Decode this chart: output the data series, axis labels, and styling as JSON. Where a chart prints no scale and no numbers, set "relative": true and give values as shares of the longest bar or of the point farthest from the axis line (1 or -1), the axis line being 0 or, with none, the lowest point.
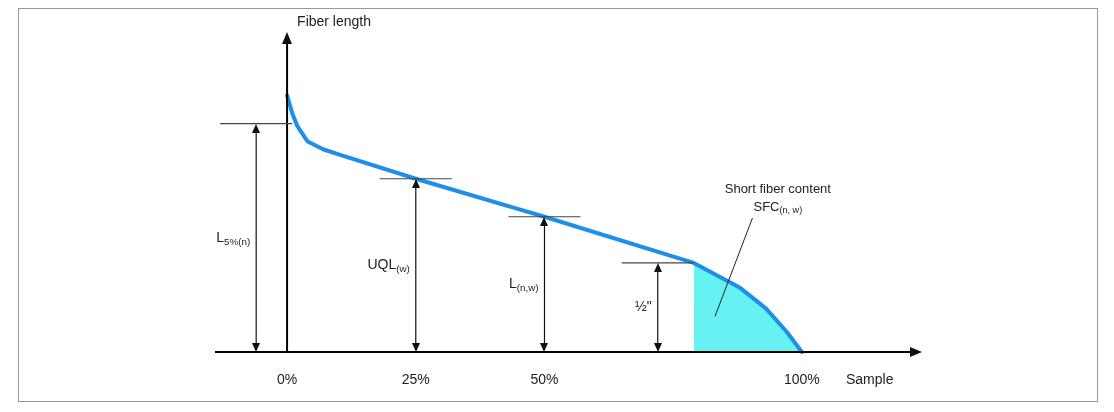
{
  "chart_data": {
    "type": "line",
    "relative": true,
    "xlabel": "Sample",
    "ylabel": "Fiber length",
    "x": [
      0,
      1,
      2,
      4,
      7,
      10,
      25,
      50,
      79,
      88,
      93,
      97,
      100
    ],
    "series": [
      {
        "color": "#1e8fe8",
        "values": [
          1,
          0.93,
          0.88,
          0.82,
          0.79,
          0.77,
          0.675,
          0.527,
          0.347,
          0.25,
          0.17,
          0.08,
          0
        ]
      },
      {
        "type": "area",
        "name": "Short fiber content SFC$_{(n, w)}$",
        "color": "#66f2f2",
        "x": [
          79,
          88,
          93,
          97,
          100
        ],
        "values": [
          0.347,
          0.25,
          0.17,
          0.08,
          0
        ]
      }
    ],
    "xlim": [
      -14,
      121
    ],
    "xticks": [
      {
        "value": 0,
        "label": "0%"
      },
      {
        "value": 25,
        "label": "25%"
      },
      {
        "value": 50,
        "label": "50%"
      },
      {
        "value": 100,
        "label": "100%"
      }
    ],
    "ref_lines": [
      {
        "axis": "x",
        "value": -6,
        "label": "L$_{5%(n)}$",
        "color": "#111111"
      },
      {
        "axis": "x",
        "value": 25,
        "label": "UQL$_{(w)}$",
        "color": "#111111"
      },
      {
        "axis": "x",
        "value": 50,
        "label": "L$_{(n,w)}$",
        "color": "#111111"
      },
      {
        "axis": "x",
        "value": 72,
        "label": "½\"",
        "color": "#111111"
      },
      {
        "axis": "y",
        "value": 0.89,
        "color": "#444444"
      },
      {
        "axis": "y",
        "value": 0.675,
        "color": "#444444"
      },
      {
        "axis": "y",
        "value": 0.527,
        "color": "#444444"
      },
      {
        "axis": "y",
        "value": 0.347,
        "color": "#444444"
      }
    ],
    "legend": false,
    "marker": "none",
    "line_style": "solid"
  }
}
